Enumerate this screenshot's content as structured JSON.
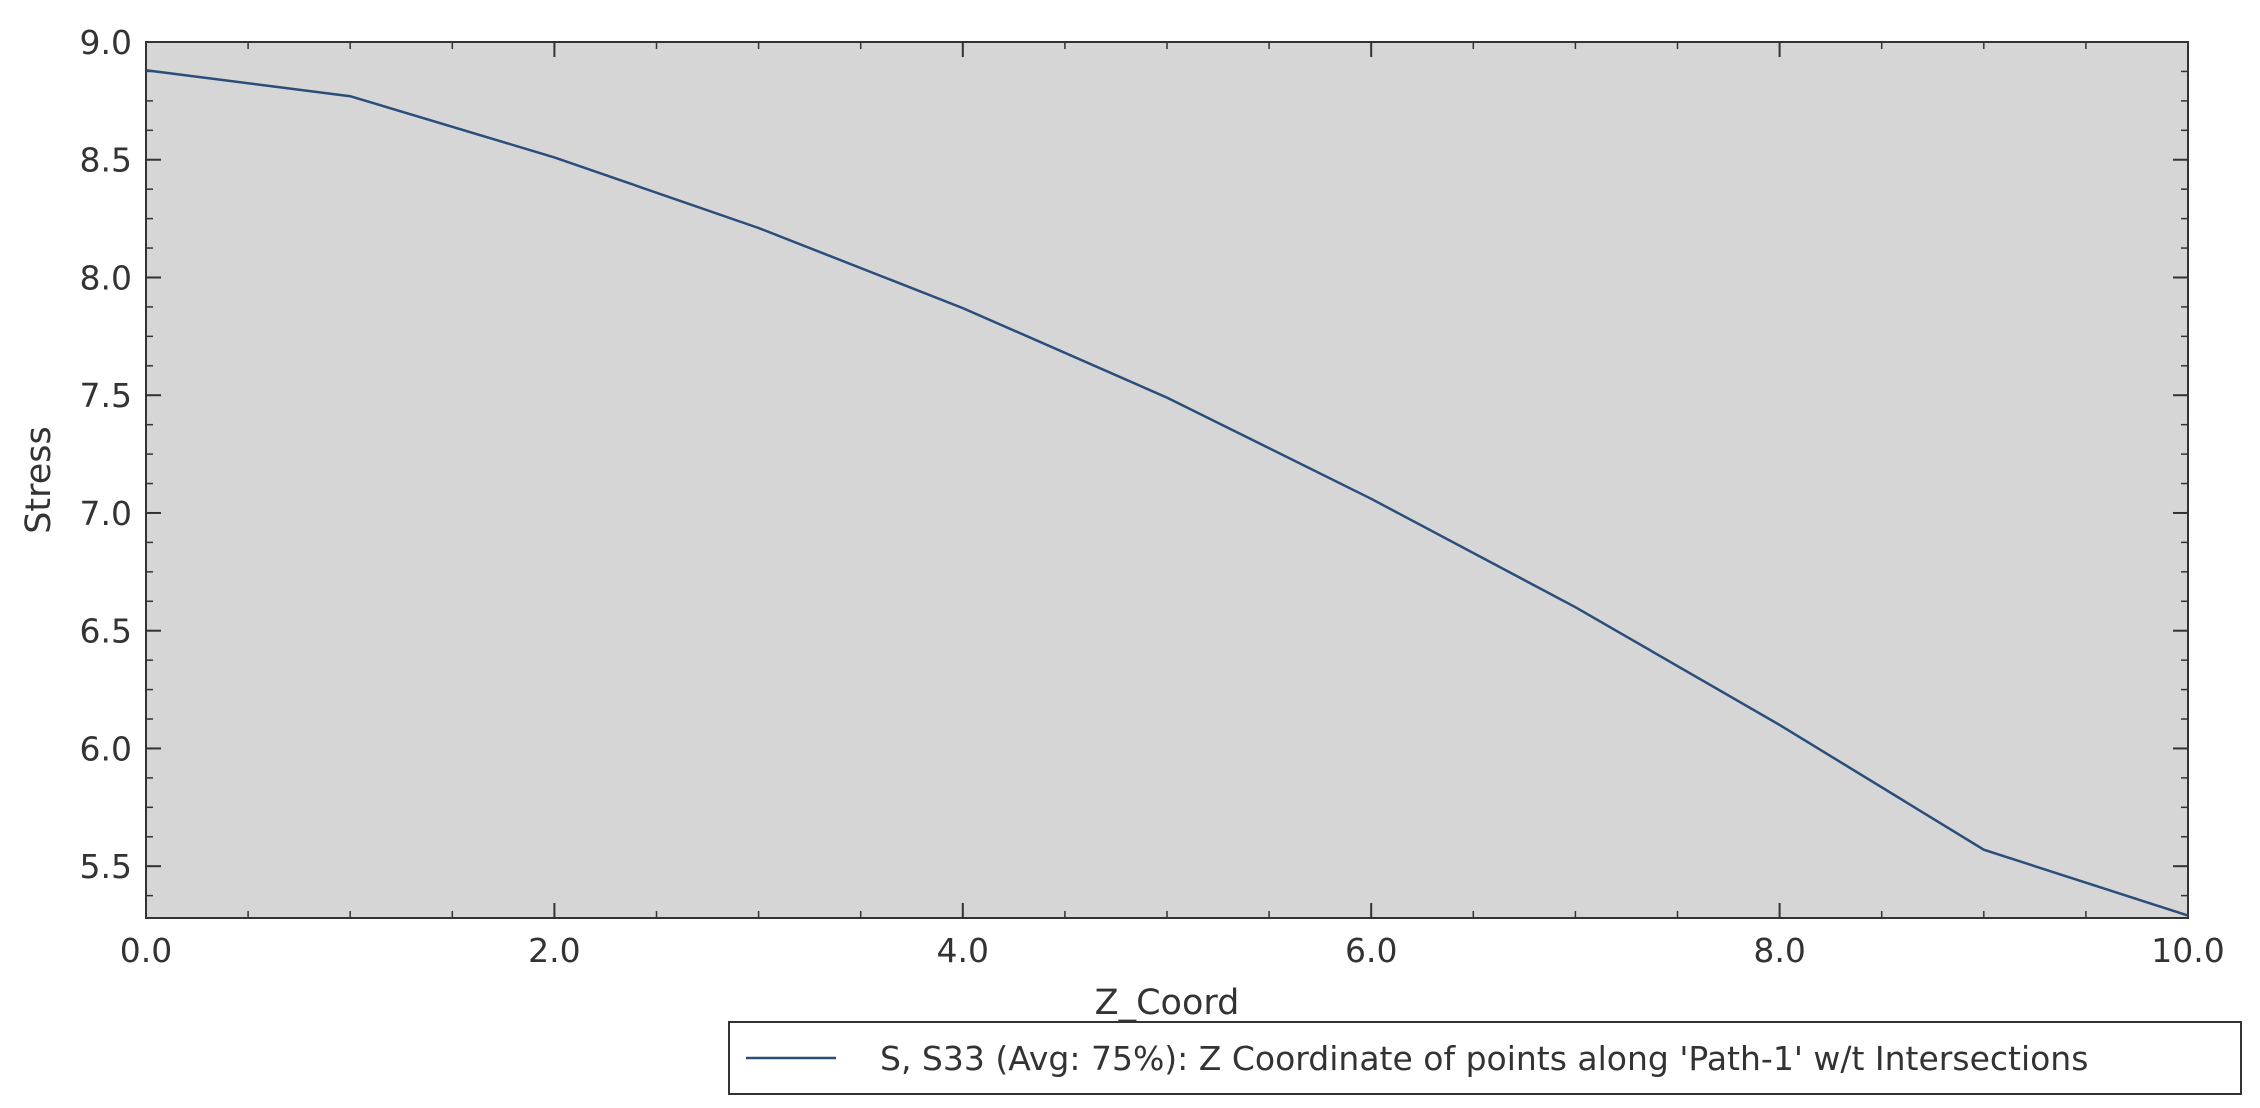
{
  "chart_data": {
    "type": "line",
    "title": "",
    "xlabel": "Z_Coord",
    "ylabel": "Stress",
    "xlim": [
      0,
      10
    ],
    "ylim": [
      5.28,
      9.0
    ],
    "x_ticks": [
      "0.0",
      "2.0",
      "4.0",
      "6.0",
      "8.0",
      "10.0"
    ],
    "y_ticks": [
      "5.5",
      "6.0",
      "6.5",
      "7.0",
      "7.5",
      "8.0",
      "8.5",
      "9.0"
    ],
    "grid": false,
    "legend_position": "bottom-right",
    "series": [
      {
        "name": "S, S33 (Avg: 75%): Z Coordinate of points along 'Path-1' w/t Intersections",
        "color": "#2a4d7a",
        "x": [
          0,
          1,
          2,
          3,
          4,
          5,
          6,
          7,
          8,
          9,
          10
        ],
        "y": [
          8.88,
          8.77,
          8.51,
          8.21,
          7.87,
          7.49,
          7.06,
          6.6,
          6.1,
          5.57,
          5.29
        ]
      }
    ],
    "plot_background": "#d6d6d6"
  }
}
